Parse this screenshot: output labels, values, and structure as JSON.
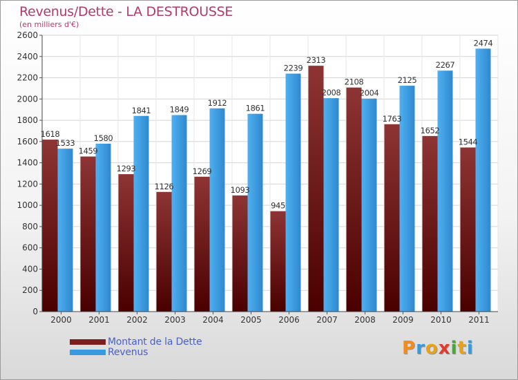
{
  "title": "Revenus/Dette - LA DESTROUSSE",
  "subtitle": "(en milliers d'€)",
  "logo": {
    "letters": [
      "P",
      "r",
      "o",
      "x",
      "i",
      "t",
      "i"
    ],
    "colors": [
      "#f28c1a",
      "#3a9ad9",
      "#e8a21a",
      "#e23b2e",
      "#4aa83a",
      "#e8a21a",
      "#3a9ad9"
    ]
  },
  "chart_data": {
    "type": "bar",
    "categories": [
      "2000",
      "2001",
      "2002",
      "2003",
      "2004",
      "2005",
      "2006",
      "2007",
      "2008",
      "2009",
      "2010",
      "2011"
    ],
    "series": [
      {
        "name": "Montant de la Dette",
        "color": "#7a1e1e",
        "values": [
          1618,
          1459,
          1293,
          1126,
          1269,
          1093,
          945,
          2313,
          2108,
          1763,
          1652,
          1544
        ],
        "labels": [
          "1618",
          "1459",
          "1293",
          "1126",
          "1269",
          "1093",
          "945",
          "2313",
          "2108",
          "1763",
          "1652",
          "1544"
        ]
      },
      {
        "name": "Revenus",
        "color": "#3a9ae0",
        "values": [
          1533,
          1580,
          1841,
          1849,
          1912,
          1861,
          2239,
          2008,
          2004,
          2125,
          2267,
          2474
        ],
        "labels": [
          "1533",
          "1580",
          "1841",
          "1849",
          "1912",
          "1861",
          "2239",
          "2008",
          "2004",
          "2125",
          "2267",
          "2474"
        ]
      }
    ],
    "ylim": [
      0,
      2600
    ],
    "yticks": [
      "0",
      "200",
      "400",
      "600",
      "800",
      "1000",
      "1200",
      "1400",
      "1600",
      "1800",
      "2000",
      "2200",
      "2400",
      "2600"
    ],
    "grid": true,
    "legend_position": "bottom-left"
  }
}
